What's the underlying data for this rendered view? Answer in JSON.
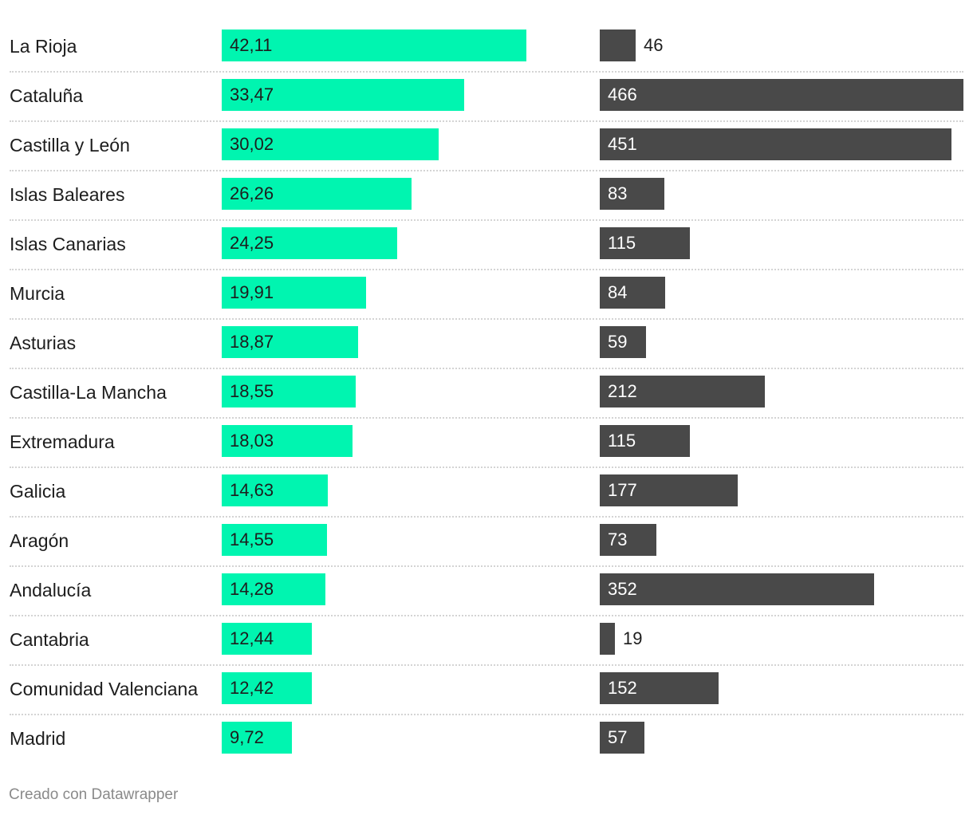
{
  "chart_data": {
    "type": "bar",
    "categories": [
      "La Rioja",
      "Cataluña",
      "Castilla y León",
      "Islas Baleares",
      "Islas Canarias",
      "Murcia",
      "Asturias",
      "Castilla-La Mancha",
      "Extremadura",
      "Galicia",
      "Aragón",
      "Andalucía",
      "Cantabria",
      "Comunidad Valenciana",
      "Madrid"
    ],
    "series": [
      {
        "values": [
          42.11,
          33.47,
          30.02,
          26.26,
          24.25,
          19.91,
          18.87,
          18.55,
          18.03,
          14.63,
          14.55,
          14.28,
          12.44,
          12.42,
          9.72
        ],
        "labels": [
          "42,11",
          "33,47",
          "30,02",
          "26,26",
          "24,25",
          "19,91",
          "18,87",
          "18,55",
          "18,03",
          "14,63",
          "14,55",
          "14,28",
          "12,44",
          "12,42",
          "9,72"
        ],
        "color": "#00f5b0"
      },
      {
        "values": [
          46,
          466,
          451,
          83,
          115,
          84,
          59,
          212,
          115,
          177,
          73,
          352,
          19,
          152,
          57
        ],
        "labels": [
          "46",
          "466",
          "451",
          "83",
          "115",
          "84",
          "59",
          "212",
          "115",
          "177",
          "73",
          "352",
          "19",
          "152",
          "57"
        ],
        "color": "#494949"
      }
    ],
    "title": "",
    "xlabel": "",
    "ylabel": "",
    "grid": false,
    "legend": "none"
  },
  "footer": {
    "credit": "Creado con Datawrapper"
  }
}
